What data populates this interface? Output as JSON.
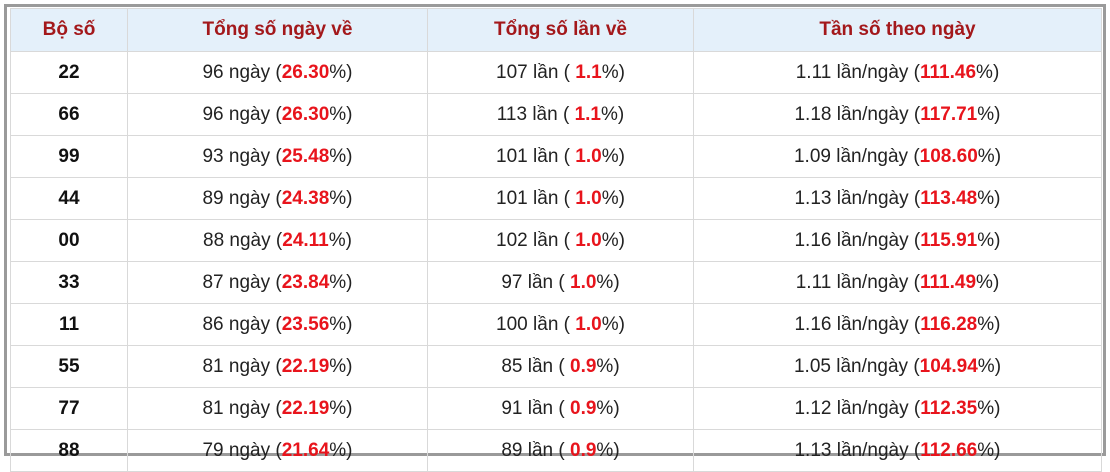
{
  "table": {
    "headers": [
      "Bộ số",
      "Tổng số ngày về",
      "Tổng số lần về",
      "Tần số theo ngày"
    ],
    "rows": [
      [
        "22",
        [
          "96 ngày (",
          "26.30",
          "%)"
        ],
        [
          "107 lần ( ",
          "1.1",
          "%)"
        ],
        [
          "1.11 lần/ngày (",
          "111.46",
          "%)"
        ]
      ],
      [
        "66",
        [
          "96 ngày (",
          "26.30",
          "%)"
        ],
        [
          "113 lần ( ",
          "1.1",
          "%)"
        ],
        [
          "1.18 lần/ngày (",
          "117.71",
          "%)"
        ]
      ],
      [
        "99",
        [
          "93 ngày (",
          "25.48",
          "%)"
        ],
        [
          "101 lần ( ",
          "1.0",
          "%)"
        ],
        [
          "1.09 lần/ngày (",
          "108.60",
          "%)"
        ]
      ],
      [
        "44",
        [
          "89 ngày (",
          "24.38",
          "%)"
        ],
        [
          "101 lần ( ",
          "1.0",
          "%)"
        ],
        [
          "1.13 lần/ngày (",
          "113.48",
          "%)"
        ]
      ],
      [
        "00",
        [
          "88 ngày (",
          "24.11",
          "%)"
        ],
        [
          "102 lần ( ",
          "1.0",
          "%)"
        ],
        [
          "1.16 lần/ngày (",
          "115.91",
          "%)"
        ]
      ],
      [
        "33",
        [
          "87 ngày (",
          "23.84",
          "%)"
        ],
        [
          "97 lần ( ",
          "1.0",
          "%)"
        ],
        [
          "1.11 lần/ngày (",
          "111.49",
          "%)"
        ]
      ],
      [
        "11",
        [
          "86 ngày (",
          "23.56",
          "%)"
        ],
        [
          "100 lần ( ",
          "1.0",
          "%)"
        ],
        [
          "1.16 lần/ngày (",
          "116.28",
          "%)"
        ]
      ],
      [
        "55",
        [
          "81 ngày (",
          "22.19",
          "%)"
        ],
        [
          "85 lần ( ",
          "0.9",
          "%)"
        ],
        [
          "1.05 lần/ngày (",
          "104.94",
          "%)"
        ]
      ],
      [
        "77",
        [
          "81 ngày (",
          "22.19",
          "%)"
        ],
        [
          "91 lần ( ",
          "0.9",
          "%)"
        ],
        [
          "1.12 lần/ngày (",
          "112.35",
          "%)"
        ]
      ],
      [
        "88",
        [
          "79 ngày (",
          "21.64",
          "%)"
        ],
        [
          "89 lần ( ",
          "0.9",
          "%)"
        ],
        [
          "1.13 lần/ngày (",
          "112.66",
          "%)"
        ]
      ]
    ]
  }
}
